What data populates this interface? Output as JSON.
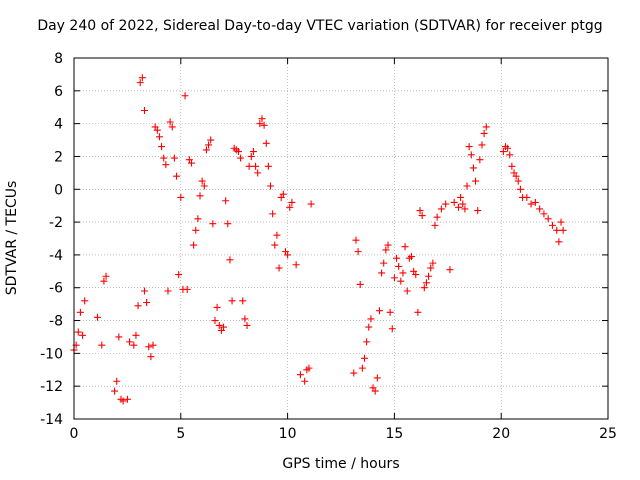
{
  "chart_data": {
    "type": "scatter",
    "title": "Day 240 of 2022, Sidereal Day-to-day VTEC variation (SDTVAR) for receiver ptgg",
    "xlabel": "GPS time / hours",
    "ylabel": "SDTVAR / TECUs",
    "xlim": [
      0,
      25
    ],
    "ylim": [
      -14,
      8
    ],
    "xticks": [
      0,
      5,
      10,
      15,
      20,
      25
    ],
    "yticks": [
      -14,
      -12,
      -10,
      -8,
      -6,
      -4,
      -2,
      0,
      2,
      4,
      6,
      8
    ],
    "grid": true,
    "marker": "+",
    "color": "#ff0000",
    "series": [
      {
        "name": "SDTVAR",
        "x": [
          0.0,
          0.1,
          0.2,
          0.3,
          0.4,
          0.5,
          1.1,
          1.3,
          1.4,
          1.5,
          1.9,
          2.0,
          2.1,
          2.2,
          2.3,
          2.5,
          2.6,
          2.8,
          2.9,
          3.0,
          3.1,
          3.2,
          3.3,
          3.3,
          3.4,
          3.5,
          3.6,
          3.7,
          3.8,
          3.9,
          4.0,
          4.1,
          4.2,
          4.3,
          4.4,
          4.5,
          4.6,
          4.7,
          4.8,
          4.9,
          5.0,
          5.1,
          5.2,
          5.3,
          5.4,
          5.5,
          5.6,
          5.7,
          5.8,
          5.9,
          6.0,
          6.1,
          6.2,
          6.3,
          6.4,
          6.5,
          6.6,
          6.7,
          6.8,
          6.9,
          7.0,
          7.1,
          7.2,
          7.3,
          7.4,
          7.5,
          7.6,
          7.7,
          7.8,
          7.9,
          8.0,
          8.1,
          8.2,
          8.3,
          8.4,
          8.5,
          8.6,
          8.7,
          8.8,
          8.9,
          9.0,
          9.1,
          9.2,
          9.3,
          9.4,
          9.5,
          9.6,
          9.7,
          9.8,
          9.9,
          10.0,
          10.1,
          10.2,
          10.4,
          10.6,
          10.8,
          10.9,
          11.0,
          11.1,
          13.1,
          13.2,
          13.3,
          13.4,
          13.5,
          13.6,
          13.7,
          13.8,
          13.9,
          14.0,
          14.1,
          14.2,
          14.3,
          14.4,
          14.5,
          14.6,
          14.7,
          14.8,
          14.9,
          15.0,
          15.1,
          15.2,
          15.3,
          15.4,
          15.5,
          15.6,
          15.7,
          15.8,
          15.9,
          16.0,
          16.1,
          16.2,
          16.3,
          16.4,
          16.5,
          16.6,
          16.7,
          16.8,
          16.9,
          17.0,
          17.2,
          17.4,
          17.6,
          17.8,
          18.0,
          18.1,
          18.2,
          18.3,
          18.4,
          18.5,
          18.6,
          18.7,
          18.8,
          18.9,
          19.0,
          19.1,
          19.2,
          19.3,
          20.1,
          20.2,
          20.3,
          20.4,
          20.5,
          20.6,
          20.7,
          20.8,
          20.9,
          21.0,
          21.2,
          21.4,
          21.6,
          21.8,
          22.0,
          22.2,
          22.4,
          22.6,
          22.7,
          22.8,
          22.9
        ],
        "y": [
          -9.8,
          -9.5,
          -8.7,
          -7.5,
          -8.9,
          -6.8,
          -7.8,
          -9.5,
          -5.6,
          -5.3,
          -12.3,
          -11.7,
          -9.0,
          -12.8,
          -12.9,
          -12.8,
          -9.3,
          -9.5,
          -8.9,
          -7.1,
          6.5,
          6.8,
          -6.2,
          4.8,
          -6.9,
          -9.6,
          -10.2,
          -9.5,
          3.8,
          3.6,
          3.2,
          2.6,
          1.9,
          1.5,
          -6.2,
          4.1,
          3.8,
          1.9,
          0.8,
          -5.2,
          -0.5,
          -6.1,
          5.7,
          -6.1,
          1.8,
          1.6,
          -3.4,
          -2.5,
          -1.8,
          -0.4,
          0.5,
          0.2,
          2.4,
          2.7,
          3.0,
          -2.1,
          -8.0,
          -7.2,
          -8.3,
          -8.6,
          -8.4,
          -0.7,
          -2.1,
          -4.3,
          -6.8,
          2.5,
          2.4,
          2.3,
          1.9,
          -6.8,
          -7.9,
          -8.3,
          1.4,
          2.0,
          2.3,
          1.4,
          1.0,
          4.0,
          4.3,
          3.9,
          2.8,
          1.4,
          0.2,
          -1.5,
          -3.4,
          -2.8,
          -4.8,
          -0.5,
          -0.3,
          -3.8,
          -4.0,
          -1.1,
          -0.8,
          -4.6,
          -11.3,
          -11.7,
          -11.0,
          -10.9,
          -0.9,
          -11.2,
          -3.1,
          -3.8,
          -5.8,
          -10.9,
          -10.3,
          -9.3,
          -8.4,
          -7.9,
          -12.1,
          -12.3,
          -11.5,
          -7.4,
          -5.1,
          -4.5,
          -3.7,
          -3.4,
          -7.5,
          -8.5,
          -5.4,
          -4.2,
          -4.7,
          -5.6,
          -5.1,
          -3.5,
          -6.2,
          -4.2,
          -4.1,
          -5.0,
          -5.2,
          -7.5,
          -1.3,
          -1.6,
          -6.0,
          -5.7,
          -5.3,
          -4.8,
          -4.5,
          -2.2,
          -1.7,
          -1.2,
          -0.9,
          -4.9,
          -0.8,
          -1.1,
          -0.5,
          -0.9,
          -1.2,
          0.2,
          2.6,
          2.1,
          1.3,
          0.5,
          -1.3,
          1.8,
          2.7,
          3.4,
          3.8,
          2.3,
          2.6,
          2.5,
          2.1,
          1.4,
          1.0,
          0.8,
          0.5,
          0.0,
          -0.5,
          -0.5,
          -0.9,
          -0.8,
          -1.2,
          -1.5,
          -1.8,
          -2.2,
          -2.5,
          -3.2,
          -2.0,
          -2.5
        ]
      }
    ]
  }
}
